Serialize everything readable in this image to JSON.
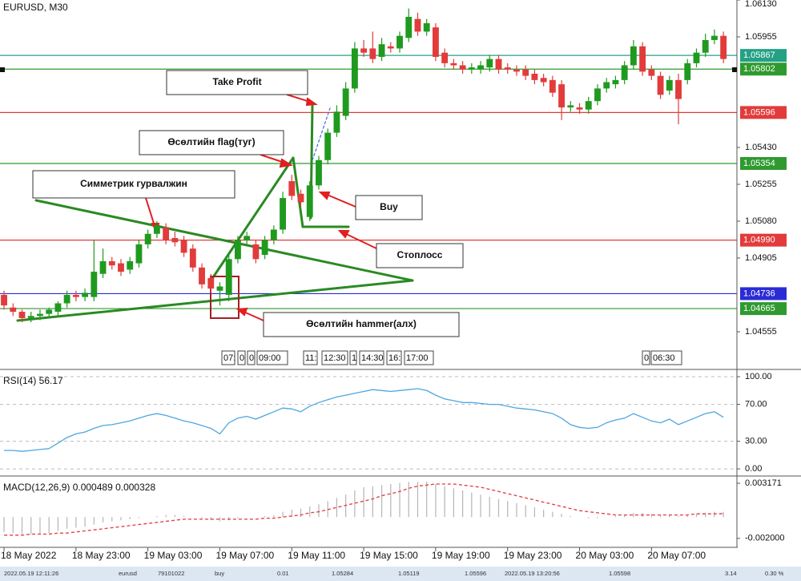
{
  "chart_data": [
    {
      "type": "candlestick",
      "title": "EURUSD, M30",
      "open": [
        1.0473,
        1.0467,
        1.0465,
        1.0462,
        1.0463,
        1.0464,
        1.0465,
        1.0469,
        1.0473,
        1.0472,
        1.0472,
        1.0483,
        1.0489,
        1.0488,
        1.0485,
        1.0488,
        1.0497,
        1.0502,
        1.0505,
        1.05,
        1.0499,
        1.0495,
        1.0486,
        1.0481,
        1.0475,
        1.0473,
        1.049,
        1.0499,
        1.0497,
        1.0492,
        1.0499,
        1.0504,
        1.0527,
        1.0521,
        1.051,
        1.0525,
        1.0537,
        1.055,
        1.0558,
        1.0571,
        1.059,
        1.059,
        1.0586,
        1.0591,
        1.059,
        1.0595,
        1.0604,
        1.0598,
        1.06,
        1.0588,
        1.0583,
        1.0582,
        1.058,
        1.058,
        1.0581,
        1.0585,
        1.0581,
        1.058,
        1.058,
        1.0578,
        1.0576,
        1.0575,
        1.0573,
        1.0562,
        1.0562,
        1.0561,
        1.0565,
        1.0571,
        1.0573,
        1.0575,
        1.0582,
        1.0591,
        1.058,
        1.0577,
        1.057,
        1.0575,
        1.0575,
        1.0583,
        1.0588,
        1.0594,
        1.0596
      ],
      "high": [
        1.0475,
        1.0469,
        1.0466,
        1.0465,
        1.0466,
        1.0467,
        1.047,
        1.0475,
        1.0475,
        1.0476,
        1.0499,
        1.0495,
        1.0491,
        1.049,
        1.0491,
        1.0499,
        1.0504,
        1.0508,
        1.0507,
        1.0503,
        1.0501,
        1.0497,
        1.0488,
        1.0483,
        1.0479,
        1.0493,
        1.0501,
        1.0503,
        1.0499,
        1.0501,
        1.0506,
        1.0522,
        1.053,
        1.0523,
        1.0527,
        1.0539,
        1.0552,
        1.0563,
        1.0574,
        1.0593,
        1.0594,
        1.0598,
        1.0595,
        1.0593,
        1.0598,
        1.0609,
        1.0607,
        1.0604,
        1.0602,
        1.059,
        1.0585,
        1.0584,
        1.0583,
        1.0584,
        1.0587,
        1.0587,
        1.0583,
        1.0582,
        1.0582,
        1.058,
        1.0578,
        1.0577,
        1.0575,
        1.0565,
        1.0564,
        1.0567,
        1.0573,
        1.0576,
        1.0577,
        1.0584,
        1.0594,
        1.0593,
        1.0582,
        1.0579,
        1.0577,
        1.0578,
        1.0585,
        1.059,
        1.0597,
        1.0599,
        1.0598
      ],
      "low": [
        1.0466,
        1.0463,
        1.046,
        1.046,
        1.0461,
        1.0462,
        1.0463,
        1.0467,
        1.047,
        1.047,
        1.047,
        1.0481,
        1.0485,
        1.0482,
        1.0483,
        1.0486,
        1.0495,
        1.05,
        1.0497,
        1.0496,
        1.0491,
        1.0484,
        1.0476,
        1.0474,
        1.0468,
        1.047,
        1.0488,
        1.0497,
        1.0488,
        1.049,
        1.0497,
        1.0502,
        1.0518,
        1.0515,
        1.0508,
        1.0523,
        1.0535,
        1.0548,
        1.0556,
        1.0569,
        1.0586,
        1.0583,
        1.0584,
        1.0588,
        1.0588,
        1.0593,
        1.0596,
        1.0596,
        1.0584,
        1.0581,
        1.058,
        1.0578,
        1.0578,
        1.0578,
        1.0579,
        1.0578,
        1.0578,
        1.0577,
        1.0575,
        1.0573,
        1.0572,
        1.0567,
        1.0556,
        1.056,
        1.0559,
        1.0559,
        1.0563,
        1.0569,
        1.0571,
        1.0573,
        1.058,
        1.0577,
        1.0575,
        1.0566,
        1.0568,
        1.0554,
        1.0573,
        1.0581,
        1.0586,
        1.0592,
        1.0583
      ],
      "close": [
        1.0468,
        1.0465,
        1.0462,
        1.0463,
        1.0464,
        1.0466,
        1.0469,
        1.0473,
        1.0472,
        1.0474,
        1.0484,
        1.0489,
        1.0487,
        1.0484,
        1.0489,
        1.0497,
        1.0502,
        1.0506,
        1.0499,
        1.0498,
        1.0493,
        1.0486,
        1.0478,
        1.0476,
        1.0477,
        1.049,
        1.0499,
        1.0501,
        1.049,
        1.0499,
        1.0504,
        1.0519,
        1.052,
        1.0517,
        1.0525,
        1.0537,
        1.055,
        1.056,
        1.0571,
        1.059,
        1.0588,
        1.0585,
        1.0592,
        1.059,
        1.0596,
        1.0605,
        1.0598,
        1.0602,
        1.0586,
        1.0583,
        1.0582,
        1.058,
        1.0581,
        1.0582,
        1.0585,
        1.058,
        1.058,
        1.0579,
        1.0577,
        1.0575,
        1.0574,
        1.0569,
        1.0562,
        1.0563,
        1.0561,
        1.0565,
        1.0571,
        1.0574,
        1.0575,
        1.0582,
        1.0591,
        1.0579,
        1.0577,
        1.0568,
        1.0575,
        1.0566,
        1.0583,
        1.0588,
        1.0594,
        1.0596,
        1.0585
      ],
      "colors": {
        "up": "#1f9a1f",
        "down": "#e23b3b"
      },
      "xlim": [
        -0.45,
        81.5
      ],
      "xticks": [
        {
          "value": 0,
          "label": "18 May 2022"
        },
        {
          "value": 8,
          "label": "18 May 23:00"
        },
        {
          "value": 16,
          "label": "19 May 03:00"
        },
        {
          "value": 24,
          "label": "19 May 07:00"
        },
        {
          "value": 32,
          "label": "19 May 11:00"
        },
        {
          "value": 40,
          "label": "19 May 15:00"
        },
        {
          "value": 48,
          "label": "19 May 19:00"
        },
        {
          "value": 56,
          "label": "19 May 23:00"
        },
        {
          "value": 64,
          "label": "20 May 03:00"
        },
        {
          "value": 72,
          "label": "20 May 07:00"
        }
      ],
      "ylim": [
        1.0438,
        1.0613
      ],
      "yticks": [
        {
          "value": 1.0613,
          "label": "1.06130"
        },
        1.05955,
        {
          "value": 1.0543,
          "label": "1.05430"
        },
        1.05255,
        {
          "value": 1.0508,
          "label": "1.05080"
        },
        1.04905,
        1.04555
      ],
      "levels": [
        {
          "value": 1.05867,
          "color": "#24a184"
        },
        {
          "value": 1.05802,
          "color": "#2f9a2f"
        },
        {
          "value": 1.05596,
          "color": "#e23b3b"
        },
        {
          "value": 1.05354,
          "color": "#2f9a2f"
        },
        {
          "value": 1.0499,
          "label": "1.04990",
          "color": "#e23b3b"
        },
        {
          "value": 1.04736,
          "color": "#2b2bd6"
        },
        {
          "value": 1.04665,
          "color": "#2f9a2f"
        }
      ]
    },
    {
      "type": "line",
      "title": "RSI(14) 56.17",
      "color": "#4ea6e0",
      "values": [
        20,
        20,
        19,
        20,
        21,
        22,
        28,
        34,
        38,
        40,
        44,
        47,
        48,
        50,
        52,
        55,
        58,
        60,
        58,
        55,
        52,
        50,
        47,
        44,
        38,
        50,
        55,
        57,
        54,
        58,
        62,
        66,
        65,
        62,
        68,
        72,
        75,
        78,
        80,
        82,
        84,
        86,
        85,
        84,
        85,
        86,
        87,
        85,
        80,
        76,
        74,
        72,
        72,
        71,
        70,
        70,
        68,
        66,
        65,
        64,
        62,
        60,
        55,
        48,
        45,
        44,
        45,
        50,
        53,
        55,
        60,
        56,
        52,
        50,
        54,
        48,
        52,
        56,
        60,
        62,
        56
      ],
      "ylim": [
        -6,
        107
      ],
      "yticks": [
        {
          "value": 100,
          "label": "100.00"
        },
        {
          "value": 70,
          "label": "70.00"
        },
        {
          "value": 30,
          "label": "30.00"
        },
        {
          "value": 0,
          "label": "0.00"
        }
      ]
    },
    {
      "type": "macd",
      "title": "MACD(12,26,9) 0.000489 0.000328",
      "color": "#b5b5b5",
      "signal_color": "#e23b3b",
      "values": [
        -0.0014,
        -0.0015,
        -0.0016,
        -0.0016,
        -0.0016,
        -0.0015,
        -0.0013,
        -0.0011,
        -0.001,
        -0.0009,
        -0.0007,
        -0.0005,
        -0.0004,
        -0.0003,
        -0.0002,
        -0.0001,
        0,
        0.0001,
        0.0002,
        0.0002,
        0.0001,
        0,
        -0.0001,
        -0.0003,
        -0.0004,
        -0.0003,
        -0.0001,
        0,
        0,
        0.0001,
        0.0002,
        0.0005,
        0.0007,
        0.0008,
        0.001,
        0.0012,
        0.0015,
        0.0018,
        0.0021,
        0.0025,
        0.0028,
        0.0029,
        0.003,
        0.0031,
        0.0032,
        0.0033,
        0.0033,
        0.0033,
        0.0031,
        0.0029,
        0.0027,
        0.0025,
        0.0023,
        0.0021,
        0.0019,
        0.0017,
        0.0015,
        0.0013,
        0.0011,
        0.0009,
        0.0007,
        0.0005,
        0.0003,
        0.0001,
        0,
        -0.0001,
        -0.0001,
        0,
        0.0001,
        0.0002,
        0.0004,
        0.0004,
        0.0003,
        0.0002,
        0.0002,
        0.0001,
        0.0002,
        0.0003,
        0.0004,
        0.0005,
        0.000489
      ],
      "signal": [
        -0.0017,
        -0.0017,
        -0.0017,
        -0.0016,
        -0.0016,
        -0.0016,
        -0.0015,
        -0.0015,
        -0.0014,
        -0.0013,
        -0.0012,
        -0.0011,
        -0.001,
        -0.0009,
        -0.0008,
        -0.0007,
        -0.0006,
        -0.0005,
        -0.0004,
        -0.0003,
        -0.0002,
        -0.0002,
        -0.0002,
        -0.0002,
        -0.0002,
        -0.0002,
        -0.0002,
        -0.0002,
        -0.0002,
        -0.0001,
        -0.0001,
        0,
        0.0001,
        0.0002,
        0.0004,
        0.0005,
        0.0007,
        0.0009,
        0.0011,
        0.0013,
        0.0015,
        0.0017,
        0.002,
        0.0022,
        0.0024,
        0.0027,
        0.0029,
        0.003,
        0.0031,
        0.0031,
        0.0031,
        0.003,
        0.0029,
        0.0028,
        0.0026,
        0.0024,
        0.0022,
        0.002,
        0.0018,
        0.0016,
        0.0014,
        0.0012,
        0.001,
        0.0008,
        0.0006,
        0.0005,
        0.0004,
        0.0003,
        0.0002,
        0.0002,
        0.0002,
        0.0002,
        0.0002,
        0.0002,
        0.0002,
        0.0002,
        0.0002,
        0.0003,
        0.0003,
        0.0003,
        0.000328
      ],
      "ylim": [
        -0.00284,
        0.0037
      ],
      "yticks": [
        0.003171,
        {
          "value": -0.002,
          "label": "-0.002000"
        }
      ]
    }
  ],
  "annotations": [
    "Take Profit",
    "Өсөлтийн flag(туг)",
    "Симметрик гурвалжин",
    "Buy",
    "Стоплосс",
    "Өсөлтийн hammer(алх)"
  ],
  "time_markers": [
    "07:",
    "0",
    "0",
    "09:00",
    "11:",
    "12:30",
    "1",
    "14:30",
    "16:",
    "17:00",
    "0",
    "06:30"
  ],
  "status_bar": [
    "2022.05.19 12:11:26",
    "eurusd",
    "79101022",
    "buy",
    "0.01",
    "1.05284",
    "1.05119",
    "1.05596",
    "2022.05.19 13:20:56",
    "1.05598",
    "3.14",
    "0.30 %"
  ]
}
